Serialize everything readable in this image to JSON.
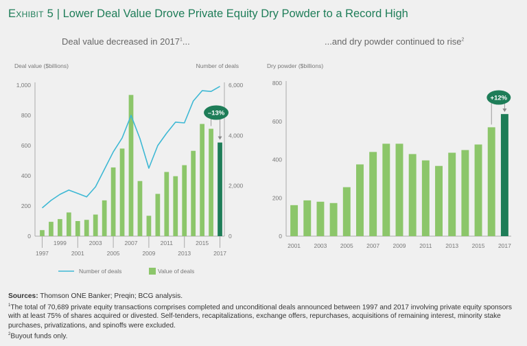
{
  "title": {
    "exhibit": "Exhibit 5",
    "separator": "|",
    "text": "Lower Deal Value Drove Private Equity Dry Powder to a Record High"
  },
  "colors": {
    "bar": "#8cc66a",
    "bar_highlight": "#1e7d58",
    "line": "#3db8d4",
    "badge": "#1e7d58",
    "title": "#1e7d58"
  },
  "chart_data": [
    {
      "type": "bar",
      "subtitle": "Deal value decreased in 2017",
      "subtitle_sup": "1",
      "subtitle_suffix": "...",
      "ylabel": "Deal value ($billions)",
      "y2label": "Number of deals",
      "ylim": [
        0,
        1000
      ],
      "y2lim": [
        0,
        6000
      ],
      "yticks": [
        "0",
        "200",
        "400",
        "600",
        "800",
        "1,000"
      ],
      "ytick_values": [
        0,
        200,
        400,
        600,
        800,
        1000
      ],
      "y2ticks": [
        "0",
        "2,000",
        "4,000",
        "6,000"
      ],
      "y2tick_values": [
        0,
        2000,
        4000,
        6000
      ],
      "categories": [
        "1997",
        "1998",
        "1999",
        "2000",
        "2001",
        "2002",
        "2003",
        "2004",
        "2005",
        "2006",
        "2007",
        "2008",
        "2009",
        "2010",
        "2011",
        "2012",
        "2013",
        "2014",
        "2015",
        "2016",
        "2017"
      ],
      "xtick_labels_lower": [
        "1997",
        "2001",
        "2005",
        "2009",
        "2013",
        "2017"
      ],
      "xtick_labels_upper": [
        "1999",
        "2003",
        "2007",
        "2011",
        "2015"
      ],
      "series": [
        {
          "name": "Value of deals",
          "type": "bar",
          "axis": "left",
          "values": [
            40,
            95,
            113,
            157,
            100,
            108,
            143,
            237,
            455,
            580,
            935,
            365,
            135,
            280,
            425,
            397,
            470,
            565,
            743,
            711,
            620
          ]
        },
        {
          "name": "Number of deals",
          "type": "line",
          "axis": "right",
          "values": [
            1120,
            1420,
            1660,
            1830,
            1700,
            1560,
            1960,
            2650,
            3350,
            3900,
            4800,
            3870,
            2700,
            3600,
            4090,
            4530,
            4500,
            5370,
            5780,
            5750,
            5950
          ]
        }
      ],
      "annotation": {
        "text": "–13%",
        "from": "2016",
        "to": "2017"
      },
      "legend": {
        "position": "bottom",
        "items": [
          {
            "label": "Number of deals",
            "kind": "line"
          },
          {
            "label": "Value of deals",
            "kind": "bar"
          }
        ]
      },
      "grid": false
    },
    {
      "type": "bar",
      "subtitle": "...and dry powder continued to rise",
      "subtitle_sup": "2",
      "ylabel": "Dry powder ($billions)",
      "ylim": [
        0,
        800
      ],
      "yticks": [
        "0",
        "200",
        "400",
        "600",
        "800"
      ],
      "ytick_values": [
        0,
        200,
        400,
        600,
        800
      ],
      "categories": [
        "2001",
        "2002",
        "2003",
        "2004",
        "2005",
        "2006",
        "2007",
        "2008",
        "2009",
        "2010",
        "2011",
        "2012",
        "2013",
        "2014",
        "2015",
        "2016",
        "2017"
      ],
      "xtick_labels": [
        "2001",
        "2003",
        "2005",
        "2007",
        "2009",
        "2011",
        "2013",
        "2015",
        "2017"
      ],
      "series": [
        {
          "name": "Dry powder",
          "type": "bar",
          "values": [
            162,
            187,
            180,
            173,
            256,
            375,
            440,
            483,
            483,
            429,
            396,
            367,
            436,
            450,
            479,
            569,
            638
          ]
        }
      ],
      "annotation": {
        "text": "+12%",
        "from": "2016",
        "to": "2017"
      },
      "grid": false
    }
  ],
  "footer": {
    "sources_label": "Sources:",
    "sources_text": " Thomson ONE Banker; Preqin; BCG analysis.",
    "note1_sup": "1",
    "note1": "The total of 70,689 private equity transactions comprises completed and unconditional deals announced between 1997 and 2017 involving private equity sponsors with at least 75% of shares acquired or divested. Self-tenders, recapitalizations, exchange offers, repurchases, acquisitions of remaining interest, minority stake purchases, privatizations, and spinoffs were excluded.",
    "note2_sup": "2",
    "note2": "Buyout funds only."
  }
}
